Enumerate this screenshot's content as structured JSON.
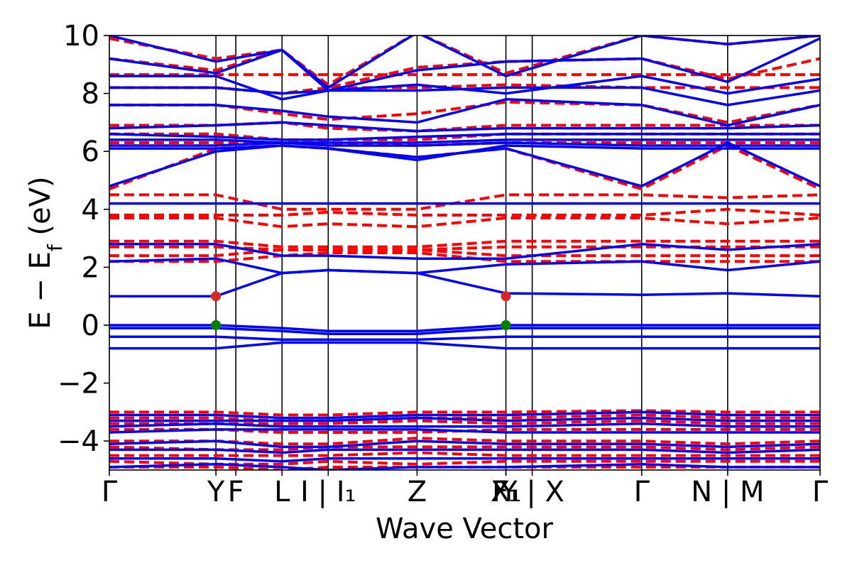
{
  "chart_data": {
    "type": "line",
    "title": "",
    "xlabel": "Wave Vector",
    "ylabel_parts": {
      "main": "E − E",
      "sub": "f",
      "unit": " (eV)"
    },
    "ylim": [
      -5,
      10
    ],
    "yticks": [
      -4,
      -2,
      0,
      2,
      4,
      6,
      8,
      10
    ],
    "ytick_labels": [
      "−4",
      "−2",
      "0",
      "2",
      "4",
      "6",
      "8",
      "10"
    ],
    "grid": false,
    "legend": "none",
    "kpoints": [
      {
        "x": 0.0,
        "label": "Γ"
      },
      {
        "x": 0.15,
        "label": "Y"
      },
      {
        "x": 0.178,
        "label": "F"
      },
      {
        "x": 0.243,
        "label": "L"
      },
      {
        "x": 0.308,
        "label": "I | I₁"
      },
      {
        "x": 0.433,
        "label": "Z"
      },
      {
        "x": 0.558,
        "label": "F₁"
      },
      {
        "x": 0.558,
        "label": "X₁"
      },
      {
        "x": 0.595,
        "label": "Y | X"
      },
      {
        "x": 0.749,
        "label": "Γ"
      },
      {
        "x": 0.87,
        "label": "N | M"
      },
      {
        "x": 1.0,
        "label": "Γ"
      }
    ],
    "vertical_lines_x": [
      0.15,
      0.178,
      0.243,
      0.308,
      0.433,
      0.558,
      0.595,
      0.749,
      0.87
    ],
    "colors": {
      "series_a": "#0000ff",
      "series_b": "#ff0000",
      "vbm_marker": "#008000",
      "cbm_marker": "#d62728"
    },
    "series_b_style": "dashed",
    "series_a": [
      {
        "x": [
          0,
          0.15,
          0.243,
          0.308,
          0.433,
          0.558,
          0.749,
          0.87,
          1
        ],
        "y": [
          10.0,
          9.1,
          9.5,
          8.2,
          10.1,
          8.6,
          10.0,
          9.7,
          10.0
        ]
      },
      {
        "x": [
          0,
          0.15,
          0.243,
          0.308,
          0.433,
          0.558,
          0.749,
          0.87,
          1
        ],
        "y": [
          9.2,
          8.7,
          9.5,
          8.1,
          8.8,
          9.1,
          9.2,
          8.4,
          9.9
        ]
      },
      {
        "x": [
          0,
          0.15,
          0.243,
          0.308,
          0.433,
          0.558,
          0.749,
          0.87,
          1
        ],
        "y": [
          8.6,
          8.6,
          7.8,
          8.1,
          8.3,
          8.0,
          8.6,
          8.0,
          8.5
        ]
      },
      {
        "x": [
          0,
          0.15,
          0.243,
          0.308,
          0.433,
          0.558,
          0.749,
          0.87,
          1
        ],
        "y": [
          8.2,
          8.2,
          8.0,
          8.1,
          8.1,
          8.2,
          8.2,
          7.6,
          8.1
        ]
      },
      {
        "x": [
          0,
          0.15,
          0.243,
          0.308,
          0.433,
          0.558,
          0.749,
          0.87,
          1
        ],
        "y": [
          7.6,
          7.6,
          7.4,
          7.2,
          7.0,
          7.8,
          7.6,
          6.9,
          7.6
        ]
      },
      {
        "x": [
          0,
          0.15,
          0.243,
          0.308,
          0.433,
          0.558,
          0.749,
          0.87,
          1
        ],
        "y": [
          6.8,
          6.9,
          7.0,
          6.9,
          6.7,
          6.8,
          6.8,
          6.8,
          6.9
        ]
      },
      {
        "x": [
          0,
          0.15,
          0.243,
          0.308,
          0.433,
          0.558,
          0.749,
          0.87,
          1
        ],
        "y": [
          6.6,
          6.5,
          6.4,
          6.4,
          6.5,
          6.6,
          6.6,
          6.6,
          6.6
        ]
      },
      {
        "x": [
          0,
          0.15,
          0.243,
          0.308,
          0.433,
          0.558,
          0.749,
          0.87,
          1
        ],
        "y": [
          6.4,
          6.4,
          6.3,
          6.3,
          6.3,
          6.4,
          6.4,
          6.4,
          6.4
        ]
      },
      {
        "x": [
          0,
          0.15,
          0.243,
          0.308,
          0.433,
          0.558,
          0.749,
          0.87,
          1
        ],
        "y": [
          6.2,
          6.2,
          6.3,
          6.2,
          6.2,
          6.3,
          6.2,
          6.2,
          6.2
        ]
      },
      {
        "x": [
          0,
          0.15,
          0.243,
          0.308,
          0.433,
          0.558,
          0.749,
          0.87,
          1
        ],
        "y": [
          6.1,
          6.1,
          6.2,
          6.1,
          5.7,
          6.2,
          6.1,
          6.1,
          6.1
        ]
      },
      {
        "x": [
          0,
          0.15,
          0.243,
          0.308,
          0.433,
          0.558,
          0.749,
          0.87,
          1
        ],
        "y": [
          4.8,
          6.0,
          6.2,
          6.1,
          5.8,
          6.1,
          4.8,
          6.3,
          4.8
        ]
      },
      {
        "x": [
          0,
          1
        ],
        "y": [
          4.2,
          4.2
        ]
      },
      {
        "x": [
          0,
          0.15,
          0.243,
          0.308,
          0.433,
          0.558,
          0.749,
          0.87,
          1
        ],
        "y": [
          2.8,
          2.8,
          2.4,
          2.4,
          2.3,
          2.3,
          2.8,
          2.6,
          2.8
        ]
      },
      {
        "x": [
          0,
          0.15,
          0.243,
          0.308,
          0.433,
          0.558,
          0.749,
          0.87,
          1
        ],
        "y": [
          2.2,
          2.3,
          1.8,
          1.9,
          1.8,
          2.1,
          2.2,
          1.9,
          2.2
        ]
      },
      {
        "x": [
          0,
          0.15,
          0.243,
          0.308,
          0.433,
          0.558,
          0.749,
          0.87,
          1
        ],
        "y": [
          1.0,
          1.0,
          1.8,
          1.9,
          1.8,
          1.1,
          1.05,
          1.1,
          1.0
        ]
      },
      {
        "x": [
          0,
          0.15,
          0.243,
          0.308,
          0.433,
          0.558,
          0.749,
          0.87,
          1
        ],
        "y": [
          0.0,
          0.0,
          -0.1,
          -0.2,
          -0.2,
          0.0,
          0.0,
          0.0,
          0.0
        ]
      },
      {
        "x": [
          0,
          0.15,
          0.243,
          0.308,
          0.433,
          0.558,
          0.749,
          0.87,
          1
        ],
        "y": [
          -0.1,
          -0.1,
          -0.2,
          -0.3,
          -0.3,
          -0.1,
          -0.1,
          -0.1,
          -0.1
        ]
      },
      {
        "x": [
          0,
          0.15,
          0.243,
          0.308,
          0.433,
          0.558,
          0.749,
          0.87,
          1
        ],
        "y": [
          -0.4,
          -0.4,
          -0.5,
          -0.5,
          -0.5,
          -0.4,
          -0.4,
          -0.4,
          -0.4
        ]
      },
      {
        "x": [
          0,
          0.15,
          0.243,
          0.308,
          0.433,
          0.558,
          0.749,
          0.87,
          1
        ],
        "y": [
          -0.8,
          -0.8,
          -0.6,
          -0.6,
          -0.6,
          -0.8,
          -0.8,
          -0.8,
          -0.8
        ]
      },
      {
        "x": [
          0,
          0.15,
          0.243,
          0.308,
          0.433,
          0.558,
          0.749,
          0.87,
          1
        ],
        "y": [
          -3.1,
          -3.1,
          -3.2,
          -3.2,
          -3.1,
          -3.1,
          -3.0,
          -3.1,
          -3.1
        ]
      },
      {
        "x": [
          0,
          0.15,
          0.243,
          0.308,
          0.433,
          0.558,
          0.749,
          0.87,
          1
        ],
        "y": [
          -3.3,
          -3.3,
          -3.3,
          -3.3,
          -3.2,
          -3.3,
          -3.2,
          -3.3,
          -3.3
        ]
      },
      {
        "x": [
          0,
          0.15,
          0.243,
          0.308,
          0.433,
          0.558,
          0.749,
          0.87,
          1
        ],
        "y": [
          -3.5,
          -3.4,
          -3.5,
          -3.5,
          -3.5,
          -3.5,
          -3.4,
          -3.5,
          -3.5
        ]
      },
      {
        "x": [
          0,
          0.15,
          0.243,
          0.308,
          0.433,
          0.558,
          0.749,
          0.87,
          1
        ],
        "y": [
          -3.7,
          -3.6,
          -3.6,
          -3.6,
          -3.6,
          -3.7,
          -3.7,
          -3.7,
          -3.7
        ]
      },
      {
        "x": [
          0,
          0.15,
          0.243,
          0.308,
          0.433,
          0.558,
          0.749,
          0.87,
          1
        ],
        "y": [
          -4.1,
          -4.0,
          -4.2,
          -4.2,
          -4.0,
          -4.1,
          -4.1,
          -4.2,
          -4.1
        ]
      },
      {
        "x": [
          0,
          0.15,
          0.243,
          0.308,
          0.433,
          0.558,
          0.749,
          0.87,
          1
        ],
        "y": [
          -4.3,
          -4.3,
          -4.4,
          -4.3,
          -4.3,
          -4.3,
          -4.3,
          -4.4,
          -4.3
        ]
      },
      {
        "x": [
          0,
          0.15,
          0.243,
          0.308,
          0.433,
          0.558,
          0.749,
          0.87,
          1
        ],
        "y": [
          -4.6,
          -4.6,
          -4.7,
          -4.6,
          -4.6,
          -4.6,
          -4.6,
          -4.6,
          -4.6
        ]
      },
      {
        "x": [
          0,
          0.15,
          0.243,
          0.308,
          0.433,
          0.558,
          0.749,
          0.87,
          1
        ],
        "y": [
          -4.9,
          -4.8,
          -4.9,
          -5.0,
          -4.9,
          -4.9,
          -4.8,
          -4.9,
          -4.9
        ]
      }
    ],
    "series_b": [
      {
        "x": [
          0,
          0.15,
          0.243,
          0.308,
          0.433,
          0.558,
          0.749,
          0.87,
          1
        ],
        "y": [
          9.9,
          9.2,
          9.5,
          8.3,
          10.1,
          8.7,
          10.0,
          9.7,
          10.0
        ]
      },
      {
        "x": [
          0,
          0.15,
          0.243,
          0.308,
          0.433,
          0.558,
          0.749,
          0.87,
          1
        ],
        "y": [
          9.2,
          8.8,
          9.5,
          8.2,
          8.9,
          9.1,
          9.2,
          8.5,
          9.2
        ]
      },
      {
        "x": [
          0,
          1
        ],
        "y": [
          8.65,
          8.65
        ]
      },
      {
        "x": [
          0,
          0.15,
          0.243,
          0.308,
          0.433,
          0.558,
          0.749,
          0.87,
          1
        ],
        "y": [
          8.2,
          8.2,
          8.0,
          8.2,
          8.2,
          8.3,
          8.2,
          8.2,
          8.2
        ]
      },
      {
        "x": [
          0,
          0.15,
          0.243,
          0.308,
          0.433,
          0.558,
          0.749,
          0.87,
          1
        ],
        "y": [
          7.6,
          7.6,
          7.3,
          7.1,
          7.3,
          7.7,
          7.6,
          7.0,
          7.6
        ]
      },
      {
        "x": [
          0,
          0.15,
          0.243,
          0.308,
          0.433,
          0.558,
          0.749,
          0.87,
          1
        ],
        "y": [
          6.9,
          6.9,
          7.0,
          6.8,
          6.7,
          6.9,
          6.9,
          6.9,
          6.9
        ]
      },
      {
        "x": [
          0,
          0.15,
          0.243,
          0.308,
          0.433,
          0.558,
          0.749,
          0.87,
          1
        ],
        "y": [
          6.6,
          6.6,
          6.4,
          6.4,
          6.4,
          6.6,
          6.6,
          6.6,
          6.6
        ]
      },
      {
        "x": [
          0,
          0.15,
          0.243,
          0.308,
          0.433,
          0.558,
          0.749,
          0.87,
          1
        ],
        "y": [
          6.3,
          6.3,
          6.3,
          6.3,
          6.2,
          6.3,
          6.3,
          6.3,
          6.3
        ]
      },
      {
        "x": [
          0,
          0.15,
          0.243,
          0.308,
          0.433,
          0.558,
          0.749,
          0.87,
          1
        ],
        "y": [
          4.7,
          6.1,
          6.2,
          6.1,
          5.8,
          6.1,
          4.7,
          6.2,
          4.7
        ]
      },
      {
        "x": [
          0,
          0.15,
          0.243,
          0.308,
          0.433,
          0.558,
          0.749,
          0.87,
          1
        ],
        "y": [
          4.5,
          4.5,
          4.0,
          4.0,
          4.0,
          4.5,
          4.5,
          4.4,
          4.5
        ]
      },
      {
        "x": [
          0,
          0.15,
          0.243,
          0.308,
          0.433,
          0.558,
          0.749,
          0.87,
          1
        ],
        "y": [
          3.8,
          3.8,
          3.8,
          3.9,
          3.8,
          3.8,
          3.8,
          4.0,
          3.8
        ]
      },
      {
        "x": [
          0,
          0.15,
          0.243,
          0.308,
          0.433,
          0.558,
          0.749,
          0.87,
          1
        ],
        "y": [
          3.7,
          3.7,
          3.4,
          3.5,
          3.4,
          3.7,
          3.7,
          3.5,
          3.7
        ]
      },
      {
        "x": [
          0,
          0.15,
          0.243,
          0.308,
          0.433,
          0.558,
          0.749,
          0.87,
          1
        ],
        "y": [
          2.9,
          2.9,
          2.7,
          2.7,
          2.7,
          2.9,
          2.9,
          2.9,
          2.9
        ]
      },
      {
        "x": [
          0,
          0.15,
          0.243,
          0.308,
          0.433,
          0.558,
          0.749,
          0.87,
          1
        ],
        "y": [
          2.7,
          2.7,
          2.6,
          2.6,
          2.6,
          2.7,
          2.7,
          2.7,
          2.7
        ]
      },
      {
        "x": [
          0,
          0.15,
          0.243,
          0.308,
          0.433,
          0.558,
          0.749,
          0.87,
          1
        ],
        "y": [
          2.4,
          2.4,
          2.6,
          2.6,
          2.6,
          2.4,
          2.4,
          2.4,
          2.4
        ]
      },
      {
        "x": [
          0,
          0.15,
          0.243,
          0.308,
          0.433,
          0.558,
          0.749,
          0.87,
          1
        ],
        "y": [
          2.2,
          2.2,
          2.4,
          2.5,
          2.5,
          2.2,
          2.2,
          2.2,
          2.2
        ]
      },
      {
        "x": [
          0,
          0.15,
          0.243,
          0.308,
          0.433,
          0.558,
          0.749,
          0.87,
          1
        ],
        "y": [
          -3.0,
          -3.0,
          -3.1,
          -3.1,
          -3.0,
          -3.0,
          -2.95,
          -3.0,
          -3.0
        ]
      },
      {
        "x": [
          0,
          0.15,
          0.243,
          0.308,
          0.433,
          0.558,
          0.749,
          0.87,
          1
        ],
        "y": [
          -3.2,
          -3.2,
          -3.3,
          -3.3,
          -3.2,
          -3.2,
          -3.1,
          -3.2,
          -3.2
        ]
      },
      {
        "x": [
          0,
          0.15,
          0.243,
          0.308,
          0.433,
          0.558,
          0.749,
          0.87,
          1
        ],
        "y": [
          -3.4,
          -3.4,
          -3.4,
          -3.4,
          -3.3,
          -3.4,
          -3.3,
          -3.4,
          -3.4
        ]
      },
      {
        "x": [
          0,
          0.15,
          0.243,
          0.308,
          0.433,
          0.558,
          0.749,
          0.87,
          1
        ],
        "y": [
          -3.6,
          -3.6,
          -3.7,
          -3.7,
          -3.7,
          -3.6,
          -3.6,
          -3.6,
          -3.6
        ]
      },
      {
        "x": [
          0,
          0.15,
          0.243,
          0.308,
          0.433,
          0.558,
          0.749,
          0.87,
          1
        ],
        "y": [
          -4.0,
          -4.0,
          -4.1,
          -4.1,
          -3.9,
          -4.0,
          -4.0,
          -4.1,
          -4.0
        ]
      },
      {
        "x": [
          0,
          0.15,
          0.243,
          0.308,
          0.433,
          0.558,
          0.749,
          0.87,
          1
        ],
        "y": [
          -4.2,
          -4.3,
          -4.3,
          -4.2,
          -4.2,
          -4.2,
          -4.2,
          -4.3,
          -4.2
        ]
      },
      {
        "x": [
          0,
          0.15,
          0.243,
          0.308,
          0.433,
          0.558,
          0.749,
          0.87,
          1
        ],
        "y": [
          -4.5,
          -4.5,
          -4.5,
          -4.5,
          -4.4,
          -4.5,
          -4.5,
          -4.5,
          -4.5
        ]
      },
      {
        "x": [
          0,
          0.15,
          0.243,
          0.308,
          0.433,
          0.558,
          0.749,
          0.87,
          1
        ],
        "y": [
          -4.7,
          -4.8,
          -4.8,
          -4.7,
          -4.8,
          -4.7,
          -4.7,
          -4.7,
          -4.7
        ]
      },
      {
        "x": [
          0,
          0.15,
          0.243,
          0.308,
          0.433,
          0.558,
          0.749,
          0.87,
          1
        ],
        "y": [
          -4.9,
          -4.9,
          -5.0,
          -4.9,
          -4.9,
          -4.9,
          -4.9,
          -4.9,
          -4.9
        ]
      }
    ],
    "markers": [
      {
        "x": 0.15,
        "y": 1.0,
        "color_key": "cbm_marker"
      },
      {
        "x": 0.15,
        "y": 0.0,
        "color_key": "vbm_marker"
      },
      {
        "x": 0.558,
        "y": 1.0,
        "color_key": "cbm_marker"
      },
      {
        "x": 0.558,
        "y": 0.0,
        "color_key": "vbm_marker"
      }
    ]
  }
}
